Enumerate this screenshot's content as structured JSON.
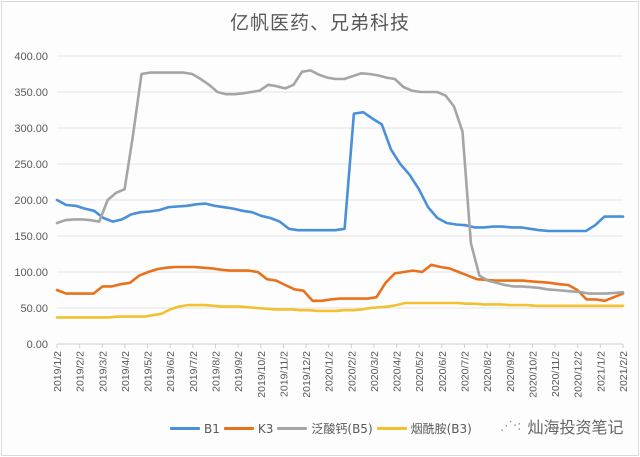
{
  "chart_data": {
    "type": "line",
    "title": "亿帆医药、兄弟科技",
    "xlabel": "",
    "ylabel": "",
    "ylim": [
      0,
      400
    ],
    "yticks": [
      "0.00",
      "50.00",
      "100.00",
      "150.00",
      "200.00",
      "250.00",
      "300.00",
      "350.00",
      "400.00"
    ],
    "grid": true,
    "legend_position": "bottom",
    "categories": [
      "2019/1/2",
      "2019/2/2",
      "2019/3/2",
      "2019/4/2",
      "2019/5/2",
      "2019/6/2",
      "2019/7/2",
      "2019/8/2",
      "2019/9/2",
      "2019/10/2",
      "2019/11/2",
      "2019/12/2",
      "2020/1/2",
      "2020/2/2",
      "2020/3/2",
      "2020/4/2",
      "2020/5/2",
      "2020/6/2",
      "2020/7/2",
      "2020/8/2",
      "2020/9/2",
      "2020/10/2",
      "2020/11/2",
      "2020/12/2",
      "2021/1/2",
      "2021/2/2"
    ],
    "x_sample_note": "values sampled at each month start and mid-month (index/2 = months since 2019/1/2)",
    "series": [
      {
        "name": "B1",
        "color": "#4a8fd9",
        "values": [
          200,
          193,
          192,
          188,
          185,
          175,
          170,
          173,
          180,
          183,
          184,
          186,
          190,
          191,
          192,
          194,
          195,
          192,
          190,
          188,
          185,
          183,
          178,
          175,
          170,
          160,
          158,
          158,
          158,
          158,
          158,
          160,
          320,
          322,
          313,
          305,
          270,
          250,
          235,
          215,
          190,
          175,
          168,
          166,
          165,
          162,
          162,
          163,
          163,
          162,
          162,
          160,
          158,
          157,
          157,
          157,
          157,
          157,
          165,
          177,
          177,
          177
        ]
      },
      {
        "name": "K3",
        "color": "#e9711c",
        "values": [
          75,
          70,
          70,
          70,
          70,
          80,
          80,
          83,
          85,
          95,
          100,
          104,
          106,
          107,
          107,
          107,
          106,
          105,
          103,
          102,
          102,
          102,
          100,
          90,
          88,
          82,
          76,
          74,
          60,
          60,
          62,
          63,
          63,
          63,
          63,
          65,
          85,
          98,
          100,
          102,
          100,
          110,
          107,
          105,
          100,
          95,
          90,
          89,
          88,
          88,
          88,
          88,
          87,
          86,
          85,
          83,
          82,
          75,
          62,
          62,
          60,
          65,
          70
        ]
      },
      {
        "name": "泛酸钙(B5)",
        "color": "#a5a5a5",
        "values": [
          168,
          172,
          173,
          173,
          172,
          170,
          200,
          210,
          215,
          290,
          375,
          377,
          377,
          377,
          377,
          377,
          375,
          368,
          360,
          350,
          347,
          347,
          348,
          350,
          352,
          360,
          358,
          355,
          360,
          378,
          380,
          374,
          370,
          368,
          368,
          372,
          376,
          375,
          373,
          370,
          368,
          357,
          352,
          350,
          350,
          350,
          345,
          330,
          295,
          140,
          95,
          88,
          85,
          82,
          80,
          80,
          79,
          78,
          76,
          75,
          74,
          73,
          72,
          70,
          70,
          70,
          71,
          72
        ]
      },
      {
        "name": "烟酰胺(B3)",
        "color": "#f2c12e",
        "values": [
          37,
          37,
          37,
          37,
          37,
          37,
          37,
          38,
          38,
          38,
          38,
          40,
          42,
          48,
          52,
          54,
          54,
          54,
          53,
          52,
          52,
          52,
          51,
          50,
          49,
          48,
          48,
          48,
          47,
          47,
          46,
          46,
          46,
          47,
          47,
          48,
          50,
          51,
          52,
          54,
          57,
          57,
          57,
          57,
          57,
          57,
          57,
          56,
          56,
          55,
          55,
          55,
          54,
          54,
          54,
          53,
          53,
          53,
          53,
          53,
          53,
          53,
          53,
          53,
          53,
          53
        ]
      }
    ]
  },
  "legend": {
    "items": [
      {
        "label": "B1",
        "color": "#4a8fd9"
      },
      {
        "label": "K3",
        "color": "#e9711c"
      },
      {
        "label": "泛酸钙(B5)",
        "color": "#a5a5a5"
      },
      {
        "label": "烟酰胺(B3)",
        "color": "#f2c12e"
      }
    ]
  },
  "watermark": {
    "text": "灿海投资笔记"
  }
}
